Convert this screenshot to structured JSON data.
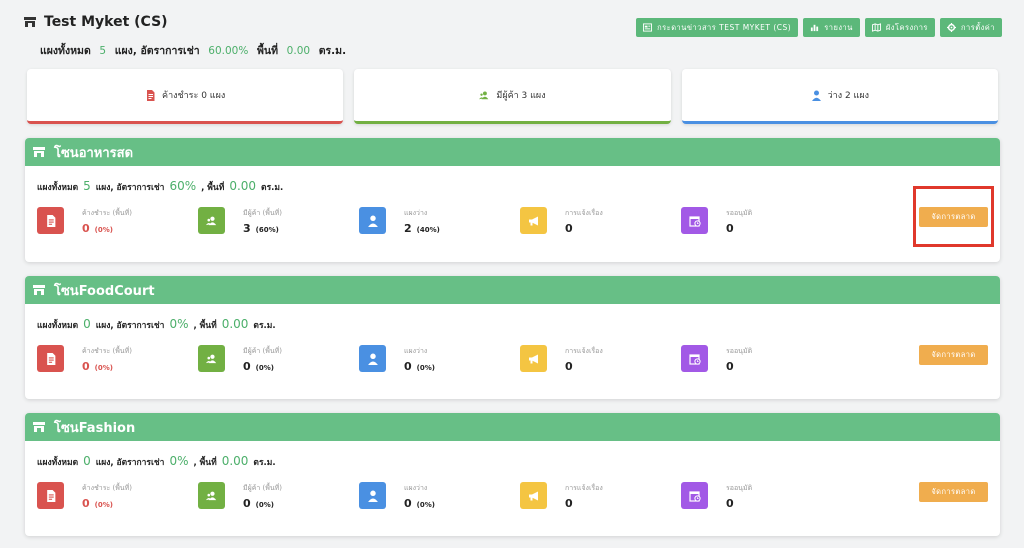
{
  "header": {
    "title": "Test Myket (CS)",
    "summary_prefix": "แผงทั้งหมด",
    "total_stalls": "5",
    "stalls_rent_label": "แผง, อัตราการเช่า",
    "rent_rate": "60.00%",
    "area_label": "พื้นที่",
    "area_value": "0.00",
    "area_unit": "ตร.ม."
  },
  "top_actions": [
    {
      "label": "กระดานข่าวสาร TEST MYKET (CS)",
      "icon": "newspaper-icon"
    },
    {
      "label": "รายงาน",
      "icon": "bar-chart-icon"
    },
    {
      "label": "ผังโครงการ",
      "icon": "map-icon"
    },
    {
      "label": "การตั้งค่า",
      "icon": "gear-icon"
    }
  ],
  "stat_cards": [
    {
      "label": "ค้างชำระ 0 แผง",
      "icon": "invoice-icon",
      "color": "#d9534f"
    },
    {
      "label": "มีผู้ค้า 3 แผง",
      "icon": "people-icon",
      "color": "#72b043"
    },
    {
      "label": "ว่าง 2 แผง",
      "icon": "user-icon",
      "color": "#4a90e2"
    }
  ],
  "zone_labels": {
    "total": "แผงทั้งหมด",
    "stalls_rent": "แผง, อัตราการเช่า",
    "area": ", พื้นที่",
    "unit": "ตร.ม.",
    "overdue": "ค้างชำระ (พื้นที่)",
    "vendors": "มีผู้ค้า (พื้นที่)",
    "vacant": "แผงว่าง",
    "complaints": "การแจ้งเรื่อง",
    "pending": "รออนุมัติ",
    "manage_button": "จัดการตลาด"
  },
  "zones": [
    {
      "name": "โซนอาหารสด",
      "total": "5",
      "rent_rate": "60%",
      "area": "0.00",
      "overdue": "0",
      "overdue_pct": "(0%)",
      "vendors": "3",
      "vendors_pct": "(60%)",
      "vacant": "2",
      "vacant_pct": "(40%)",
      "complaints": "0",
      "pending": "0"
    },
    {
      "name": "โซนFoodCourt",
      "total": "0",
      "rent_rate": "0%",
      "area": "0.00",
      "overdue": "0",
      "overdue_pct": "(0%)",
      "vendors": "0",
      "vendors_pct": "(0%)",
      "vacant": "0",
      "vacant_pct": "(0%)",
      "complaints": "0",
      "pending": "0"
    },
    {
      "name": "โซนFashion",
      "total": "0",
      "rent_rate": "0%",
      "area": "0.00",
      "overdue": "0",
      "overdue_pct": "(0%)",
      "vendors": "0",
      "vendors_pct": "(0%)",
      "vacant": "0",
      "vacant_pct": "(0%)",
      "complaints": "0",
      "pending": "0"
    }
  ],
  "colors": {
    "primary_green": "#5cb87a",
    "zone_header": "#67bf86",
    "overdue_red": "#d9534f",
    "vendor_green": "#72b043",
    "vacant_blue": "#4a90e2",
    "complaint_yellow": "#f4c542",
    "pending_purple": "#a259e6",
    "manage_orange": "#f0ad4e",
    "highlight": "#e0382b"
  }
}
